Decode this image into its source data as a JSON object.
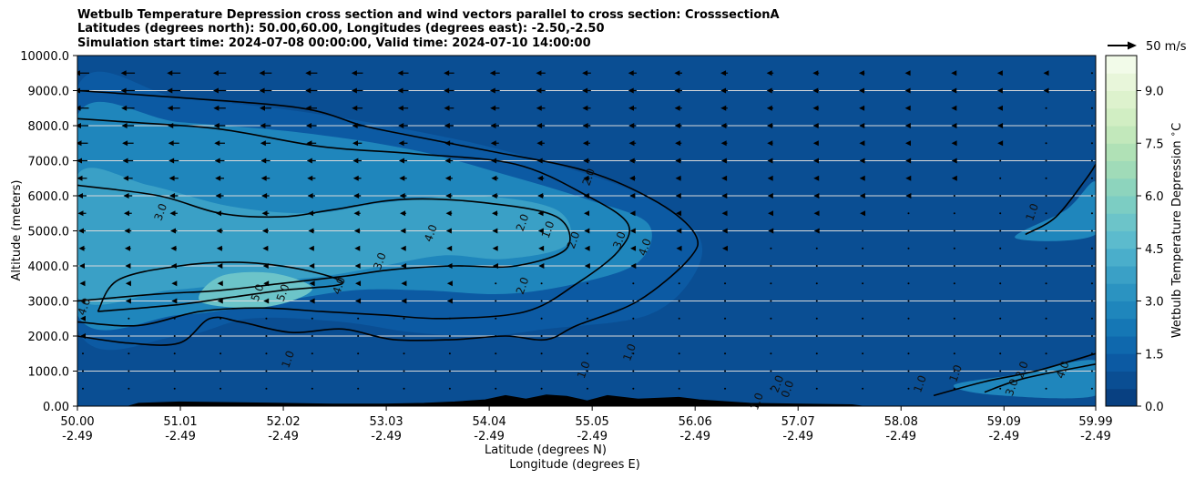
{
  "chart_data": {
    "type": "contour",
    "title_lines": [
      "Wetbulb Temperature Depression cross section and wind vectors parallel to cross section: CrosssectionA",
      "Latitudes (degrees north): 50.00,60.00, Longitudes (degrees east): -2.50,-2.50",
      "Simulation start time: 2024-07-08 00:00:00, Valid time: 2024-07-10 14:00:00"
    ],
    "xlabel_lines": [
      "Latitude (degrees N)",
      "Longitude (degrees E)"
    ],
    "ylabel": "Altitude (meters)",
    "xlim": [
      50.0,
      59.99
    ],
    "ylim": [
      0,
      10000
    ],
    "x_ticks": [
      {
        "lat": "50.00",
        "lon": "-2.49",
        "value": 50.0
      },
      {
        "lat": "51.01",
        "lon": "-2.49",
        "value": 51.01
      },
      {
        "lat": "52.02",
        "lon": "-2.49",
        "value": 52.02
      },
      {
        "lat": "53.03",
        "lon": "-2.49",
        "value": 53.03
      },
      {
        "lat": "54.04",
        "lon": "-2.49",
        "value": 54.04
      },
      {
        "lat": "55.05",
        "lon": "-2.49",
        "value": 55.05
      },
      {
        "lat": "56.06",
        "lon": "-2.49",
        "value": 56.06
      },
      {
        "lat": "57.07",
        "lon": "-2.49",
        "value": 57.07
      },
      {
        "lat": "58.08",
        "lon": "-2.49",
        "value": 58.08
      },
      {
        "lat": "59.09",
        "lon": "-2.49",
        "value": 59.09
      },
      {
        "lat": "59.99",
        "lon": "-2.49",
        "value": 59.99
      }
    ],
    "y_ticks": [
      {
        "label": "0.00",
        "value": 0
      },
      {
        "label": "1000.0",
        "value": 1000
      },
      {
        "label": "2000.0",
        "value": 2000
      },
      {
        "label": "3000.0",
        "value": 3000
      },
      {
        "label": "4000.0",
        "value": 4000
      },
      {
        "label": "5000.0",
        "value": 5000
      },
      {
        "label": "6000.0",
        "value": 6000
      },
      {
        "label": "7000.0",
        "value": 7000
      },
      {
        "label": "8000.0",
        "value": 8000
      },
      {
        "label": "9000.0",
        "value": 9000
      },
      {
        "label": "10000.0",
        "value": 10000
      }
    ],
    "grid": {
      "horizontal": true,
      "vertical": false
    },
    "colorbar": {
      "label": "Wetbulb Temperature Depression $^\\circ$C",
      "range": [
        0,
        10
      ],
      "ticks": [
        {
          "label": "0.0",
          "value": 0
        },
        {
          "label": "1.5",
          "value": 1.5
        },
        {
          "label": "3.0",
          "value": 3.0
        },
        {
          "label": "4.5",
          "value": 4.5
        },
        {
          "label": "6.0",
          "value": 6.0
        },
        {
          "label": "7.5",
          "value": 7.5
        },
        {
          "label": "9.0",
          "value": 9.0
        }
      ],
      "levels": 20,
      "colors": [
        "#084081",
        "#0a4e93",
        "#0c5aa3",
        "#0f68ad",
        "#1577b5",
        "#1f86bc",
        "#2b93c1",
        "#3aa0c6",
        "#4aaecb",
        "#5cbbcd",
        "#6cc4c9",
        "#7ccdc3",
        "#8dd4bd",
        "#a0dbb8",
        "#b0e1b6",
        "#c2e8bb",
        "#d1eec3",
        "#ddf2cd",
        "#e8f6da",
        "#f2fbe9"
      ]
    },
    "quiver_key": {
      "label": "50 m/s",
      "speed": 50
    },
    "shaded_regions": [
      {
        "level": 1.0,
        "color": "#0c5aa3",
        "outline": [
          [
            50.0,
            2200
          ],
          [
            51.0,
            2000
          ],
          [
            51.7,
            2500
          ],
          [
            52.6,
            2400
          ],
          [
            53.3,
            2100
          ],
          [
            54.0,
            2000
          ],
          [
            54.6,
            2200
          ],
          [
            55.6,
            2600
          ],
          [
            56.06,
            3800
          ],
          [
            56.06,
            5000
          ],
          [
            55.4,
            6200
          ],
          [
            54.3,
            7200
          ],
          [
            53.4,
            7800
          ],
          [
            52.2,
            8400
          ],
          [
            51.0,
            8800
          ],
          [
            50.0,
            9100
          ]
        ]
      },
      {
        "level": 1.5,
        "color": "#1f86bc",
        "outline": [
          [
            50.0,
            2600
          ],
          [
            51.0,
            2600
          ],
          [
            51.8,
            2900
          ],
          [
            52.7,
            3300
          ],
          [
            53.4,
            3300
          ],
          [
            54.2,
            3200
          ],
          [
            54.9,
            3500
          ],
          [
            55.5,
            4100
          ],
          [
            55.6,
            5200
          ],
          [
            55.0,
            5900
          ],
          [
            54.2,
            6600
          ],
          [
            53.3,
            7300
          ],
          [
            52.2,
            7800
          ],
          [
            51.0,
            8100
          ],
          [
            50.0,
            8300
          ]
        ]
      },
      {
        "level": 3.0,
        "color": "#3aa0c6",
        "outline": [
          [
            50.0,
            3100
          ],
          [
            50.9,
            3300
          ],
          [
            51.6,
            3500
          ],
          [
            52.4,
            3700
          ],
          [
            53.0,
            4000
          ],
          [
            53.6,
            4300
          ],
          [
            54.2,
            4200
          ],
          [
            54.8,
            4600
          ],
          [
            54.7,
            5600
          ],
          [
            53.9,
            6000
          ],
          [
            53.0,
            5800
          ],
          [
            52.3,
            5500
          ],
          [
            51.5,
            5700
          ],
          [
            50.7,
            6300
          ],
          [
            50.0,
            6600
          ]
        ]
      },
      {
        "level": 4.5,
        "color": "#6cc4c9",
        "outline": [
          [
            51.2,
            3000
          ],
          [
            51.7,
            2800
          ],
          [
            52.1,
            3000
          ],
          [
            52.3,
            3400
          ],
          [
            51.9,
            3800
          ],
          [
            51.4,
            3700
          ]
        ]
      },
      {
        "level": 1.5,
        "color": "#1f86bc",
        "outline": [
          [
            58.6,
            600
          ],
          [
            59.2,
            900
          ],
          [
            59.99,
            1300
          ],
          [
            59.99,
            300
          ],
          [
            59.0,
            320
          ]
        ]
      },
      {
        "level": 1.5,
        "color": "#1f86bc",
        "outline": [
          [
            59.2,
            4800
          ],
          [
            59.7,
            5600
          ],
          [
            59.99,
            6400
          ],
          [
            59.99,
            4900
          ]
        ]
      }
    ],
    "contours": [
      {
        "level": "1.0",
        "points": [
          [
            50.0,
            2000
          ],
          [
            50.5,
            1800
          ],
          [
            51.0,
            1800
          ],
          [
            51.3,
            2500
          ],
          [
            51.6,
            2400
          ],
          [
            52.1,
            2100
          ],
          [
            52.6,
            2200
          ],
          [
            53.1,
            1900
          ],
          [
            53.7,
            1900
          ],
          [
            54.2,
            2000
          ],
          [
            54.6,
            1900
          ],
          [
            54.9,
            2300
          ],
          [
            55.5,
            3000
          ],
          [
            56.0,
            4200
          ],
          [
            56.06,
            4900
          ],
          [
            55.7,
            5800
          ],
          [
            55.0,
            6700
          ],
          [
            54.0,
            7300
          ],
          [
            53.3,
            7700
          ],
          [
            52.8,
            8000
          ],
          [
            52.2,
            8500
          ],
          [
            51.0,
            8800
          ],
          [
            50.0,
            9000
          ]
        ]
      },
      {
        "level": "2.0",
        "points": [
          [
            50.0,
            2400
          ],
          [
            50.6,
            2300
          ],
          [
            51.2,
            2700
          ],
          [
            51.8,
            2800
          ],
          [
            52.4,
            2700
          ],
          [
            53.0,
            2600
          ],
          [
            53.6,
            2500
          ],
          [
            54.4,
            2700
          ],
          [
            54.9,
            3500
          ],
          [
            55.3,
            4400
          ],
          [
            55.4,
            5200
          ],
          [
            55.0,
            6000
          ],
          [
            54.3,
            6900
          ],
          [
            53.3,
            7200
          ],
          [
            52.4,
            7400
          ],
          [
            51.4,
            7900
          ],
          [
            50.5,
            8100
          ],
          [
            50.0,
            8200
          ]
        ]
      },
      {
        "level": "3.0",
        "points": [
          [
            50.0,
            3000
          ],
          [
            50.8,
            3200
          ],
          [
            51.4,
            3300
          ],
          [
            52.0,
            3500
          ],
          [
            52.6,
            3700
          ],
          [
            53.1,
            3900
          ],
          [
            53.7,
            4000
          ],
          [
            54.3,
            4000
          ],
          [
            54.8,
            4500
          ],
          [
            54.7,
            5400
          ],
          [
            54.0,
            5800
          ],
          [
            53.2,
            5900
          ],
          [
            52.5,
            5600
          ],
          [
            52.0,
            5400
          ],
          [
            51.4,
            5500
          ],
          [
            50.8,
            6000
          ],
          [
            50.0,
            6300
          ]
        ]
      },
      {
        "level": "4.0",
        "points": [
          [
            50.2,
            2700
          ],
          [
            51.0,
            2900
          ],
          [
            51.5,
            3100
          ],
          [
            52.0,
            3300
          ],
          [
            52.6,
            3500
          ],
          [
            52.2,
            3900
          ],
          [
            51.6,
            4100
          ],
          [
            51.0,
            4000
          ],
          [
            50.4,
            3600
          ],
          [
            50.2,
            2700
          ]
        ]
      },
      {
        "level": "1.0",
        "points": [
          [
            58.4,
            300
          ],
          [
            58.9,
            700
          ],
          [
            59.4,
            1000
          ],
          [
            59.99,
            1500
          ]
        ]
      },
      {
        "level": "2.0",
        "points": [
          [
            58.9,
            400
          ],
          [
            59.3,
            800
          ],
          [
            59.99,
            1200
          ]
        ]
      },
      {
        "level": "1.0",
        "points": [
          [
            59.3,
            4900
          ],
          [
            59.6,
            5400
          ],
          [
            59.9,
            6500
          ],
          [
            59.99,
            6900
          ]
        ]
      }
    ],
    "contour_labels": [
      {
        "text": "3.0",
        "x": 50.85,
        "y": 5500
      },
      {
        "text": "4.0",
        "x": 50.1,
        "y": 2800
      },
      {
        "text": "5.0",
        "x": 51.8,
        "y": 3200
      },
      {
        "text": "5.0",
        "x": 52.05,
        "y": 3200
      },
      {
        "text": "4.0",
        "x": 52.6,
        "y": 3400
      },
      {
        "text": "3.0",
        "x": 53.0,
        "y": 4100
      },
      {
        "text": "4.0",
        "x": 53.5,
        "y": 4900
      },
      {
        "text": "2.0",
        "x": 54.4,
        "y": 5200
      },
      {
        "text": "1.0",
        "x": 54.65,
        "y": 5000
      },
      {
        "text": "2.0",
        "x": 54.9,
        "y": 4700
      },
      {
        "text": "3.0",
        "x": 55.35,
        "y": 4700
      },
      {
        "text": "4.0",
        "x": 55.6,
        "y": 4500
      },
      {
        "text": "2.0",
        "x": 55.05,
        "y": 6500
      },
      {
        "text": "2.0",
        "x": 54.4,
        "y": 3400
      },
      {
        "text": "1.0",
        "x": 52.1,
        "y": 1300
      },
      {
        "text": "1.0",
        "x": 55.45,
        "y": 1500
      },
      {
        "text": "1.0",
        "x": 55.0,
        "y": 1000
      },
      {
        "text": "2.0",
        "x": 56.9,
        "y": 600
      },
      {
        "text": "1.0",
        "x": 56.7,
        "y": 100
      },
      {
        "text": "0.0",
        "x": 57.0,
        "y": 450
      },
      {
        "text": "1.0",
        "x": 58.3,
        "y": 600
      },
      {
        "text": "1.0",
        "x": 58.65,
        "y": 900
      },
      {
        "text": "2.0",
        "x": 59.3,
        "y": 1000
      },
      {
        "text": "3.0",
        "x": 59.2,
        "y": 500
      },
      {
        "text": "4.0",
        "x": 59.7,
        "y": 1000
      },
      {
        "text": "1.0",
        "x": 59.4,
        "y": 5500
      }
    ],
    "terrain": [
      [
        50.0,
        0
      ],
      [
        50.5,
        0
      ],
      [
        50.6,
        80
      ],
      [
        51.0,
        120
      ],
      [
        51.5,
        100
      ],
      [
        52.0,
        80
      ],
      [
        52.5,
        60
      ],
      [
        53.0,
        60
      ],
      [
        53.4,
        80
      ],
      [
        53.7,
        120
      ],
      [
        54.0,
        180
      ],
      [
        54.2,
        300
      ],
      [
        54.4,
        200
      ],
      [
        54.6,
        320
      ],
      [
        54.8,
        280
      ],
      [
        55.0,
        150
      ],
      [
        55.2,
        300
      ],
      [
        55.5,
        200
      ],
      [
        55.9,
        250
      ],
      [
        56.1,
        180
      ],
      [
        56.6,
        80
      ],
      [
        57.1,
        60
      ],
      [
        57.6,
        40
      ],
      [
        57.7,
        0
      ],
      [
        59.99,
        0
      ]
    ],
    "wind_vectors": {
      "rows": [
        9500,
        9000,
        8500,
        8000,
        7500,
        7000,
        6500,
        6000,
        5500,
        5000,
        4500,
        4000,
        3500,
        3000,
        2500,
        2000,
        1500,
        1000,
        500
      ],
      "x": [
        50.0,
        50.45,
        50.9,
        51.35,
        51.8,
        52.25,
        52.7,
        53.15,
        53.6,
        54.05,
        54.5,
        54.95,
        55.4,
        55.85,
        56.3,
        56.75,
        57.2,
        57.65,
        58.1,
        58.55,
        59.0,
        59.45,
        59.9
      ],
      "u_profile": [
        -14,
        -14,
        -13,
        -12,
        -11,
        -10,
        -9,
        -8,
        -7,
        -6,
        -5,
        -4,
        -3,
        -3,
        -2,
        -2,
        -1,
        -1,
        0
      ]
    }
  }
}
